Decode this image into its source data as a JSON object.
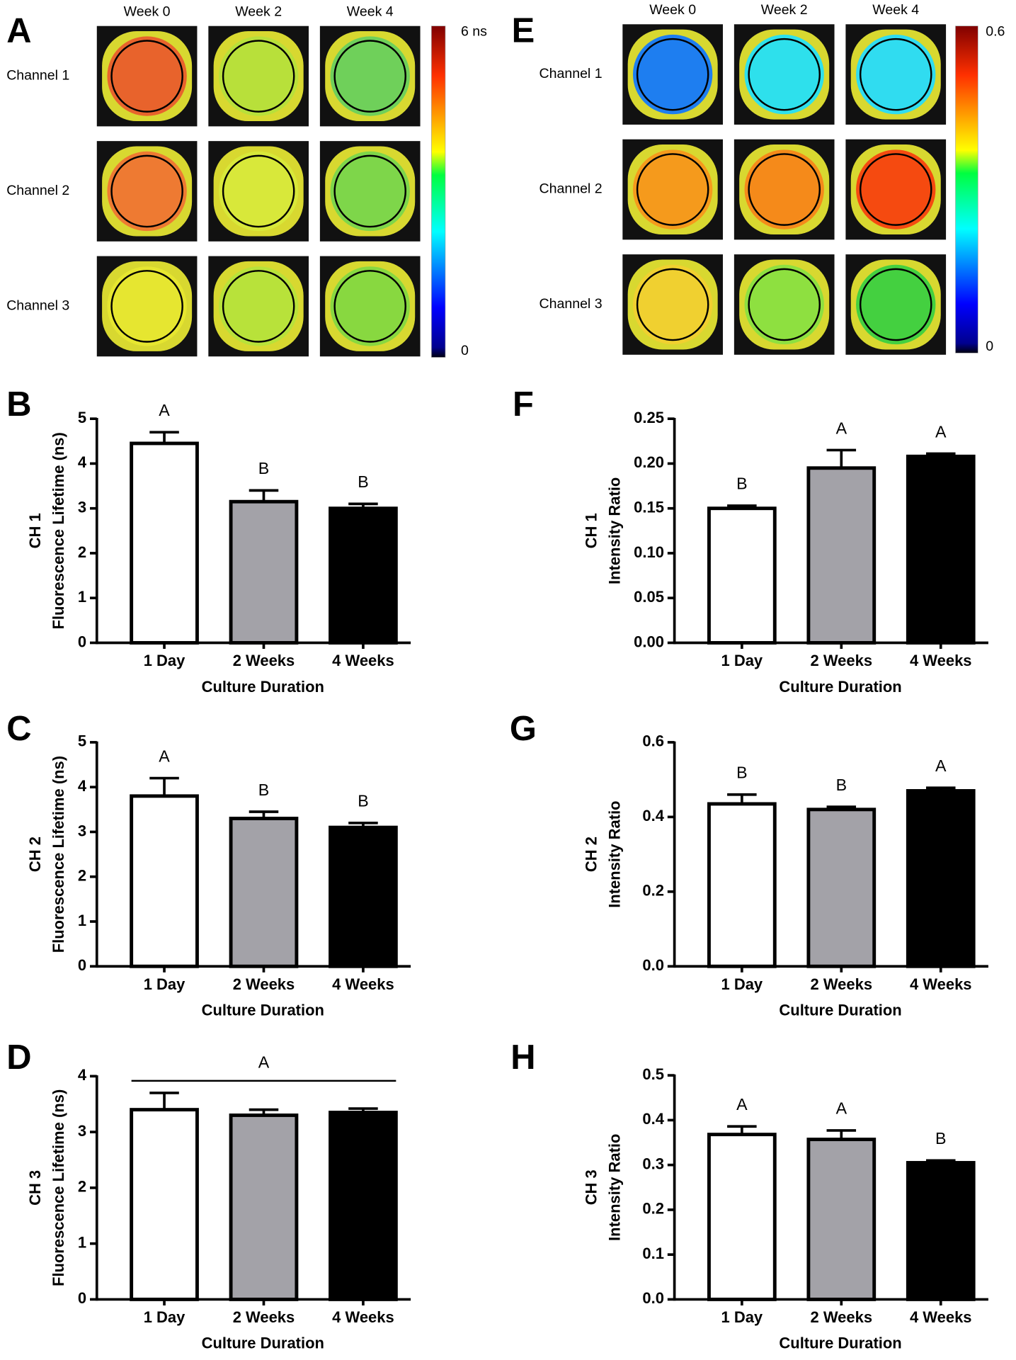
{
  "chart_data": [
    {
      "type": "heatmap",
      "panel": "A",
      "columns": [
        "Week 0",
        "Week 2",
        "Week 4"
      ],
      "rows": [
        "Channel 1",
        "Channel 2",
        "Channel 3"
      ],
      "cell_colors": [
        [
          "#e8632c",
          "#b8e03a",
          "#6fd05a"
        ],
        [
          "#ee7a32",
          "#d8e83a",
          "#7ed64a"
        ],
        [
          "#e6e630",
          "#b8e23a",
          "#88d840"
        ]
      ],
      "colorbar_labels": [
        "6 ns",
        "0"
      ]
    },
    {
      "type": "bar",
      "panel": "B",
      "ylabel": [
        "CH 1",
        "Fluorescence Lifetime (ns)"
      ],
      "xlabel": "Culture Duration",
      "categories": [
        "1 Day",
        "2 Weeks",
        "4 Weeks"
      ],
      "values": [
        4.45,
        3.15,
        3.0
      ],
      "errors": [
        0.25,
        0.25,
        0.1
      ],
      "colors": [
        "#ffffff",
        "#a3a2a8",
        "#000000"
      ],
      "annotations": [
        "A",
        "B",
        "B"
      ],
      "ylim": [
        0,
        5
      ],
      "yticks": [
        0,
        1,
        2,
        3,
        4,
        5
      ]
    },
    {
      "type": "bar",
      "panel": "C",
      "ylabel": [
        "CH 2",
        "Fluorescence Lifetime (ns)"
      ],
      "xlabel": "Culture Duration",
      "categories": [
        "1 Day",
        "2 Weeks",
        "4 Weeks"
      ],
      "values": [
        3.8,
        3.3,
        3.1
      ],
      "errors": [
        0.4,
        0.15,
        0.1
      ],
      "colors": [
        "#ffffff",
        "#a3a2a8",
        "#000000"
      ],
      "annotations": [
        "A",
        "B",
        "B"
      ],
      "ylim": [
        0,
        5
      ],
      "yticks": [
        0,
        1,
        2,
        3,
        4,
        5
      ]
    },
    {
      "type": "bar",
      "panel": "D",
      "ylabel": [
        "CH 3",
        "Fluorescence Lifetime (ns)"
      ],
      "xlabel": "Culture Duration",
      "categories": [
        "1 Day",
        "2 Weeks",
        "4 Weeks"
      ],
      "values": [
        3.4,
        3.3,
        3.35
      ],
      "errors": [
        0.3,
        0.1,
        0.07
      ],
      "colors": [
        "#ffffff",
        "#a3a2a8",
        "#000000"
      ],
      "annotations": [
        "A"
      ],
      "annotation_span": true,
      "ylim": [
        0,
        4
      ],
      "yticks": [
        0,
        1,
        2,
        3,
        4
      ]
    },
    {
      "type": "heatmap",
      "panel": "E",
      "columns": [
        "Week 0",
        "Week 2",
        "Week 4"
      ],
      "rows": [
        "Channel 1",
        "Channel 2",
        "Channel 3"
      ],
      "cell_colors": [
        [
          "#1e7ef0",
          "#2ee0ec",
          "#30dcf0"
        ],
        [
          "#f59a1c",
          "#f58a1a",
          "#f54a10"
        ],
        [
          "#f0d030",
          "#8ee040",
          "#44d040"
        ]
      ],
      "colorbar_labels": [
        "0.6",
        "0"
      ]
    },
    {
      "type": "bar",
      "panel": "F",
      "ylabel": [
        "CH 1",
        "Intensity Ratio"
      ],
      "xlabel": "Culture Duration",
      "categories": [
        "1 Day",
        "2 Weeks",
        "4 Weeks"
      ],
      "values": [
        0.15,
        0.195,
        0.208
      ],
      "errors": [
        0.003,
        0.02,
        0.003
      ],
      "colors": [
        "#ffffff",
        "#a3a2a8",
        "#000000"
      ],
      "annotations": [
        "B",
        "A",
        "A"
      ],
      "ylim": [
        0,
        0.25
      ],
      "yticks": [
        {
          "value": 0,
          "label": "0.00"
        },
        {
          "value": 0.05,
          "label": "0.05"
        },
        {
          "value": 0.1,
          "label": "0.10"
        },
        {
          "value": 0.15,
          "label": "0.15"
        },
        {
          "value": 0.2,
          "label": "0.20"
        },
        {
          "value": 0.25,
          "label": "0.25"
        }
      ]
    },
    {
      "type": "bar",
      "panel": "G",
      "ylabel": [
        "CH 2",
        "Intensity Ratio"
      ],
      "xlabel": "Culture Duration",
      "categories": [
        "1 Day",
        "2 Weeks",
        "4 Weeks"
      ],
      "values": [
        0.435,
        0.42,
        0.47
      ],
      "errors": [
        0.025,
        0.007,
        0.008
      ],
      "colors": [
        "#ffffff",
        "#a3a2a8",
        "#000000"
      ],
      "annotations": [
        "B",
        "B",
        "A"
      ],
      "ylim": [
        0,
        0.6
      ],
      "yticks": [
        {
          "value": 0,
          "label": "0.0"
        },
        0.2,
        0.4,
        0.6
      ]
    },
    {
      "type": "bar",
      "panel": "H",
      "ylabel": [
        "CH 3",
        "Intensity Ratio"
      ],
      "xlabel": "Culture Duration",
      "categories": [
        "1 Day",
        "2 Weeks",
        "4 Weeks"
      ],
      "values": [
        0.368,
        0.357,
        0.305
      ],
      "errors": [
        0.018,
        0.02,
        0.005
      ],
      "colors": [
        "#ffffff",
        "#a3a2a8",
        "#000000"
      ],
      "annotations": [
        "A",
        "A",
        "B"
      ],
      "ylim": [
        0,
        0.5
      ],
      "yticks": [
        {
          "value": 0,
          "label": "0.0"
        },
        0.1,
        0.2,
        0.3,
        0.4,
        0.5
      ]
    }
  ]
}
